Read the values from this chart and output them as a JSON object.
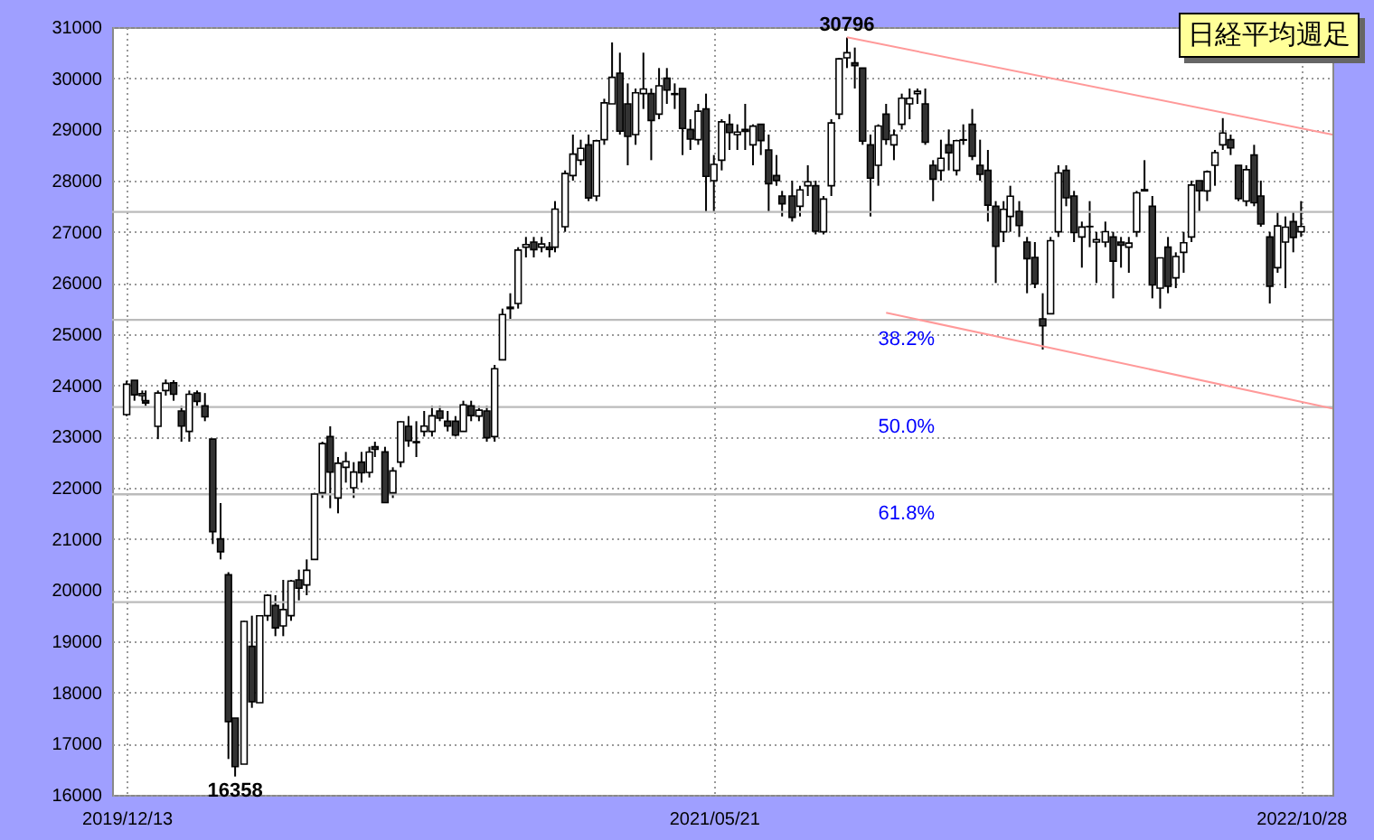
{
  "chart_data": {
    "type": "candlestick",
    "title": "日経平均週足",
    "x": [
      "2019-12-13",
      "2019-12-20",
      "2019-12-27",
      "2019-12-30",
      "2020-01-10",
      "2020-01-17",
      "2020-01-24",
      "2020-01-31",
      "2020-02-07",
      "2020-02-14",
      "2020-02-21",
      "2020-02-28",
      "2020-03-06",
      "2020-03-13",
      "2020-03-19",
      "2020-03-27",
      "2020-04-03",
      "2020-04-10",
      "2020-04-17",
      "2020-04-24",
      "2020-05-01",
      "2020-05-08",
      "2020-05-15",
      "2020-05-22",
      "2020-05-29",
      "2020-06-05",
      "2020-06-12",
      "2020-06-19",
      "2020-06-26",
      "2020-07-03",
      "2020-07-10",
      "2020-07-17",
      "2020-07-22",
      "2020-07-31",
      "2020-08-07",
      "2020-08-14",
      "2020-08-21",
      "2020-08-28",
      "2020-09-04",
      "2020-09-11",
      "2020-09-18",
      "2020-09-25",
      "2020-10-02",
      "2020-10-09",
      "2020-10-16",
      "2020-10-23",
      "2020-10-30",
      "2020-11-06",
      "2020-11-13",
      "2020-11-20",
      "2020-11-27",
      "2020-12-04",
      "2020-12-11",
      "2020-12-18",
      "2020-12-25",
      "2020-12-30",
      "2021-01-08",
      "2021-01-15",
      "2021-01-22",
      "2021-01-29",
      "2021-02-05",
      "2021-02-12",
      "2021-02-19",
      "2021-02-26",
      "2021-03-05",
      "2021-03-12",
      "2021-03-19",
      "2021-03-26",
      "2021-04-02",
      "2021-04-09",
      "2021-04-16",
      "2021-04-23",
      "2021-04-30",
      "2021-05-07",
      "2021-05-14",
      "2021-05-21",
      "2021-05-28",
      "2021-06-04",
      "2021-06-11",
      "2021-06-18",
      "2021-06-25",
      "2021-07-02",
      "2021-07-09",
      "2021-07-16",
      "2021-07-21",
      "2021-07-30",
      "2021-08-06",
      "2021-08-13",
      "2021-08-20",
      "2021-08-27",
      "2021-09-03",
      "2021-09-10",
      "2021-09-17",
      "2021-09-24",
      "2021-10-01",
      "2021-10-08",
      "2021-10-15",
      "2021-10-22",
      "2021-10-29",
      "2021-11-05",
      "2021-11-12",
      "2021-11-19",
      "2021-11-26",
      "2021-12-03",
      "2021-12-10",
      "2021-12-17",
      "2021-12-24",
      "2021-12-30",
      "2022-01-07",
      "2022-01-14",
      "2022-01-21",
      "2022-01-28",
      "2022-02-04",
      "2022-02-10",
      "2022-02-18",
      "2022-02-25",
      "2022-03-04",
      "2022-03-11",
      "2022-03-18",
      "2022-03-25",
      "2022-04-01",
      "2022-04-08",
      "2022-04-15",
      "2022-04-22",
      "2022-04-28",
      "2022-05-06",
      "2022-05-13",
      "2022-05-20",
      "2022-05-27",
      "2022-06-03",
      "2022-06-10",
      "2022-06-17",
      "2022-06-24",
      "2022-07-01",
      "2022-07-08",
      "2022-07-15",
      "2022-07-22",
      "2022-07-29",
      "2022-08-05",
      "2022-08-12",
      "2022-08-19",
      "2022-08-26",
      "2022-09-02",
      "2022-09-09",
      "2022-09-16",
      "2022-09-22",
      "2022-09-30",
      "2022-10-07",
      "2022-10-14",
      "2022-10-21",
      "2022-10-28"
    ],
    "ohlc": [
      [
        23430,
        24092,
        23400,
        24023
      ],
      [
        24100,
        24100,
        23700,
        23816
      ],
      [
        23800,
        23900,
        23700,
        23837
      ],
      [
        23700,
        23900,
        23600,
        23656
      ],
      [
        23200,
        23900,
        22950,
        23850
      ],
      [
        23900,
        24115,
        23800,
        24041
      ],
      [
        24050,
        24100,
        23700,
        23827
      ],
      [
        23500,
        23600,
        22900,
        23205
      ],
      [
        23100,
        23900,
        22900,
        23827
      ],
      [
        23850,
        23900,
        23600,
        23687
      ],
      [
        23600,
        23850,
        23300,
        23386
      ],
      [
        22950,
        22950,
        20900,
        21142
      ],
      [
        21000,
        21700,
        20600,
        20749
      ],
      [
        20300,
        20350,
        16700,
        17431
      ],
      [
        17500,
        17500,
        16358,
        16552
      ],
      [
        16600,
        19400,
        16600,
        19389
      ],
      [
        18900,
        19500,
        17700,
        17820
      ],
      [
        17800,
        19500,
        17800,
        19498
      ],
      [
        19500,
        19920,
        19400,
        19897
      ],
      [
        19700,
        19900,
        19100,
        19262
      ],
      [
        19300,
        20200,
        19100,
        19619
      ],
      [
        19500,
        20200,
        19400,
        20179
      ],
      [
        20200,
        20400,
        19800,
        20037
      ],
      [
        20100,
        20600,
        19900,
        20388
      ],
      [
        20600,
        21900,
        20600,
        21877
      ],
      [
        21900,
        22900,
        21800,
        22863
      ],
      [
        23000,
        23200,
        21600,
        22305
      ],
      [
        21800,
        22600,
        21500,
        22478
      ],
      [
        22400,
        22700,
        22100,
        22512
      ],
      [
        22000,
        22500,
        21800,
        22306
      ],
      [
        22500,
        22700,
        22100,
        22290
      ],
      [
        22300,
        22800,
        22200,
        22696
      ],
      [
        22800,
        22900,
        22600,
        22751
      ],
      [
        22700,
        22800,
        21700,
        21710
      ],
      [
        21900,
        22400,
        21800,
        22329
      ],
      [
        22500,
        23300,
        22400,
        23289
      ],
      [
        23200,
        23400,
        22800,
        22920
      ],
      [
        22900,
        23300,
        22600,
        22882
      ],
      [
        23100,
        23500,
        23000,
        23205
      ],
      [
        23100,
        23600,
        23000,
        23406
      ],
      [
        23500,
        23600,
        23300,
        23360
      ],
      [
        23300,
        23500,
        23100,
        23205
      ],
      [
        23300,
        23400,
        23000,
        23029
      ],
      [
        23100,
        23700,
        23100,
        23619
      ],
      [
        23600,
        23700,
        23300,
        23410
      ],
      [
        23400,
        23600,
        23300,
        23516
      ],
      [
        23500,
        23600,
        22900,
        22977
      ],
      [
        23000,
        24400,
        22900,
        24325
      ],
      [
        24500,
        25500,
        24500,
        25385
      ],
      [
        25500,
        25800,
        25300,
        25527
      ],
      [
        25600,
        26700,
        25500,
        26644
      ],
      [
        26700,
        26900,
        26500,
        26751
      ],
      [
        26800,
        26900,
        26500,
        26652
      ],
      [
        26700,
        26900,
        26600,
        26763
      ],
      [
        26700,
        26800,
        26500,
        26656
      ],
      [
        26700,
        27600,
        26600,
        27444
      ],
      [
        27100,
        28200,
        27000,
        28139
      ],
      [
        28100,
        28900,
        28000,
        28519
      ],
      [
        28400,
        28800,
        28300,
        28631
      ],
      [
        28700,
        28900,
        27600,
        27663
      ],
      [
        27700,
        28800,
        27600,
        28779
      ],
      [
        28800,
        29600,
        28700,
        29520
      ],
      [
        29500,
        30700,
        29500,
        30018
      ],
      [
        30100,
        30500,
        28900,
        28966
      ],
      [
        29500,
        29900,
        28300,
        28864
      ],
      [
        28900,
        29800,
        28700,
        29717
      ],
      [
        29700,
        30500,
        29400,
        29792
      ],
      [
        29700,
        29800,
        28400,
        29176
      ],
      [
        29300,
        30200,
        29200,
        29854
      ],
      [
        30000,
        30200,
        29500,
        29768
      ],
      [
        29700,
        29900,
        29400,
        29683
      ],
      [
        29800,
        29800,
        28500,
        29020
      ],
      [
        29000,
        29200,
        28600,
        28812
      ],
      [
        28800,
        29500,
        28700,
        29357
      ],
      [
        29400,
        29700,
        27400,
        28084
      ],
      [
        28000,
        28500,
        27400,
        28317
      ],
      [
        28400,
        29200,
        28200,
        29149
      ],
      [
        29100,
        29300,
        28600,
        28941
      ],
      [
        28900,
        29100,
        28600,
        28948
      ],
      [
        29000,
        29500,
        28600,
        28964
      ],
      [
        28700,
        29100,
        28300,
        29066
      ],
      [
        29100,
        29100,
        28500,
        28783
      ],
      [
        28600,
        28900,
        27400,
        27940
      ],
      [
        28100,
        28500,
        27900,
        28003
      ],
      [
        27700,
        27800,
        27300,
        27548
      ],
      [
        27700,
        28000,
        27200,
        27283
      ],
      [
        27500,
        27900,
        27300,
        27820
      ],
      [
        27900,
        28300,
        27700,
        27977
      ],
      [
        27900,
        28000,
        26950,
        27013
      ],
      [
        27000,
        27700,
        26950,
        27641
      ],
      [
        27900,
        29200,
        27700,
        29128
      ],
      [
        29300,
        30400,
        29200,
        30381
      ],
      [
        30400,
        30796,
        30200,
        30500
      ],
      [
        30300,
        30600,
        29800,
        30248
      ],
      [
        30200,
        30200,
        28700,
        28771
      ],
      [
        28700,
        28900,
        27300,
        28048
      ],
      [
        28300,
        29100,
        27900,
        29068
      ],
      [
        29300,
        29500,
        28700,
        28804
      ],
      [
        28700,
        29000,
        28400,
        28892
      ],
      [
        29100,
        29700,
        29000,
        29611
      ],
      [
        29500,
        29800,
        29200,
        29609
      ],
      [
        29700,
        29800,
        29500,
        29745
      ],
      [
        29500,
        29800,
        28700,
        28751
      ],
      [
        28300,
        28400,
        27600,
        28029
      ],
      [
        28200,
        28800,
        28000,
        28437
      ],
      [
        28700,
        29000,
        28200,
        28545
      ],
      [
        28200,
        28800,
        28100,
        28782
      ],
      [
        28800,
        29100,
        28700,
        28791
      ],
      [
        29100,
        29400,
        28400,
        28478
      ],
      [
        28300,
        28800,
        28000,
        28124
      ],
      [
        28200,
        28600,
        27200,
        27522
      ],
      [
        27500,
        27600,
        26000,
        26717
      ],
      [
        27000,
        27600,
        26800,
        27439
      ],
      [
        27300,
        27900,
        27000,
        27696
      ],
      [
        27400,
        27600,
        26900,
        27122
      ],
      [
        26800,
        26900,
        25800,
        26476
      ],
      [
        26500,
        26800,
        25900,
        25985
      ],
      [
        25300,
        25800,
        24700,
        25162
      ],
      [
        25400,
        26900,
        25400,
        26827
      ],
      [
        27000,
        28300,
        26900,
        28149
      ],
      [
        28200,
        28300,
        27500,
        27665
      ],
      [
        27700,
        27800,
        26800,
        26985
      ],
      [
        26900,
        27200,
        26300,
        27093
      ],
      [
        27100,
        27600,
        26700,
        27105
      ],
      [
        26800,
        27000,
        26000,
        26847
      ],
      [
        26800,
        27200,
        26700,
        27003
      ],
      [
        26900,
        27000,
        25700,
        26427
      ],
      [
        26800,
        26900,
        26300,
        26739
      ],
      [
        26700,
        26900,
        26200,
        26781
      ],
      [
        27000,
        27800,
        26900,
        27761
      ],
      [
        27800,
        28400,
        27800,
        27824
      ],
      [
        27500,
        27700,
        25700,
        25963
      ],
      [
        25900,
        26500,
        25500,
        26491
      ],
      [
        26700,
        26900,
        25800,
        25935
      ],
      [
        26100,
        26600,
        25900,
        26517
      ],
      [
        26600,
        27000,
        26200,
        26788
      ],
      [
        26900,
        28000,
        26800,
        27914
      ],
      [
        28000,
        28000,
        27400,
        27801
      ],
      [
        27800,
        28200,
        27600,
        28175
      ],
      [
        28300,
        28600,
        27900,
        28546
      ],
      [
        28700,
        29222,
        28600,
        28930
      ],
      [
        28800,
        28900,
        28500,
        28641
      ],
      [
        28300,
        28300,
        27600,
        27650
      ],
      [
        27600,
        28300,
        27500,
        28214
      ],
      [
        28500,
        28700,
        27500,
        27567
      ],
      [
        27700,
        28000,
        27100,
        27153
      ],
      [
        26900,
        27000,
        25600,
        25937
      ],
      [
        26300,
        27400,
        26200,
        27116
      ],
      [
        26800,
        27300,
        25900,
        27090
      ],
      [
        27200,
        27400,
        26600,
        26890
      ],
      [
        27000,
        27600,
        26900,
        27105
      ]
    ],
    "series": [
      {
        "type": "line",
        "color": "#ff9999",
        "x": [
          "2021-09-17",
          "2022-11-25"
        ],
        "values": [
          30800,
          28900
        ]
      },
      {
        "type": "line",
        "color": "#ff9999",
        "x": [
          "2021-10-22",
          "2022-11-25"
        ],
        "values": [
          25420,
          23550
        ]
      }
    ],
    "xlim": [
      "2019-11-30",
      "2022-11-25"
    ],
    "xticks": [
      {
        "value": "2019-12-13",
        "label": "2019/12/13"
      },
      {
        "value": "2021-05-21",
        "label": "2021/05/21"
      },
      {
        "value": "2022-10-28",
        "label": "2022/10/28"
      }
    ],
    "ylim": [
      16000,
      31000
    ],
    "yticks": [
      16000,
      17000,
      18000,
      19000,
      20000,
      21000,
      22000,
      23000,
      24000,
      25000,
      26000,
      27000,
      28000,
      29000,
      30000,
      31000
    ],
    "grid": true,
    "ref_lines": [
      {
        "axis": "y",
        "value": 27389,
        "color": "#bbbbbb"
      },
      {
        "axis": "y",
        "value": 25281,
        "color": "#bbbbbb"
      },
      {
        "axis": "y",
        "value": 23577,
        "color": "#bbbbbb"
      },
      {
        "axis": "y",
        "value": 21873,
        "color": "#bbbbbb"
      },
      {
        "axis": "y",
        "value": 19766,
        "color": "#bbbbbb"
      }
    ],
    "annotations": [
      {
        "text": "30796",
        "x": "2021-09-17",
        "y": 30796
      },
      {
        "text": "16358",
        "x": "2020-03-19",
        "y": 16358
      },
      {
        "text": "38.2%",
        "x": "2021-10-15",
        "y": 25281
      },
      {
        "text": "50.0%",
        "x": "2021-10-15",
        "y": 23577
      },
      {
        "text": "61.8%",
        "x": "2021-10-15",
        "y": 21873
      }
    ]
  }
}
